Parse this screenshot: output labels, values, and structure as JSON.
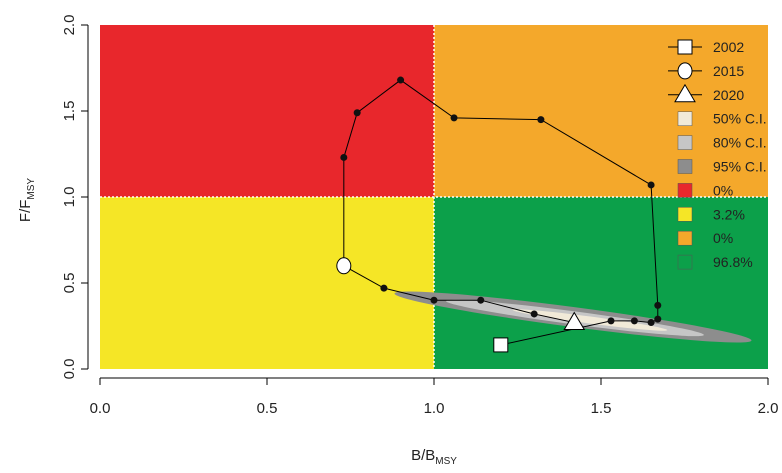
{
  "chart_data": {
    "type": "line",
    "x_label": {
      "text": "B/B",
      "sub": "MSY"
    },
    "y_label": {
      "text": "F/F",
      "sub": "MSY"
    },
    "xlim": [
      0,
      2
    ],
    "ylim": [
      0,
      2
    ],
    "xticks": [
      {
        "value": 0,
        "label": "0.0"
      },
      {
        "value": 0.5,
        "label": "0.5"
      },
      {
        "value": 1,
        "label": "1.0"
      },
      {
        "value": 1.5,
        "label": "1.5"
      },
      {
        "value": 2,
        "label": "2.0"
      }
    ],
    "yticks": [
      {
        "value": 0,
        "label": "0.0"
      },
      {
        "value": 0.5,
        "label": "0.5"
      },
      {
        "value": 1,
        "label": "1.0"
      },
      {
        "value": 1.5,
        "label": "1.5"
      },
      {
        "value": 2,
        "label": "2.0"
      }
    ],
    "reference_x": 1,
    "reference_y": 1,
    "x": [
      1.2,
      1.53,
      1.6,
      1.65,
      1.67,
      1.67,
      1.65,
      1.32,
      1.06,
      0.9,
      0.77,
      0.73,
      0.73,
      0.85,
      1.0,
      1.14,
      1.3,
      1.42
    ],
    "series": [
      {
        "color": "#000000",
        "values": [
          0.14,
          0.28,
          0.28,
          0.27,
          0.29,
          0.37,
          1.07,
          1.45,
          1.46,
          1.68,
          1.49,
          1.23,
          0.6,
          0.47,
          0.4,
          0.4,
          0.32,
          0.27
        ],
        "markers": [
          "square",
          "dot",
          "dot",
          "dot",
          "dot",
          "dot",
          "dot",
          "dot",
          "dot",
          "dot",
          "dot",
          "dot",
          "circle",
          "dot",
          "dot",
          "dot",
          "dot",
          "triangle"
        ]
      }
    ],
    "legend": [
      {
        "label": "2002",
        "marker": "square"
      },
      {
        "label": "2015",
        "marker": "circle"
      },
      {
        "label": "2020",
        "marker": "triangle"
      },
      {
        "label": "50% C.I.",
        "color": "#f1ead8",
        "region": "ci"
      },
      {
        "label": "80% C.I.",
        "color": "#c6c6c6",
        "region": "ci"
      },
      {
        "label": "95% C.I.",
        "color": "#8d8d8d",
        "region": "ci"
      },
      {
        "label": "0%",
        "color": "#e8272c",
        "region": "top-left"
      },
      {
        "label": "3.2%",
        "color": "#f5e626",
        "region": "bottom-left"
      },
      {
        "label": "0%",
        "color": "#f4a82b",
        "region": "top-right"
      },
      {
        "label": "96.8%",
        "color": "#0ca04a",
        "region": "bottom-right"
      }
    ]
  }
}
